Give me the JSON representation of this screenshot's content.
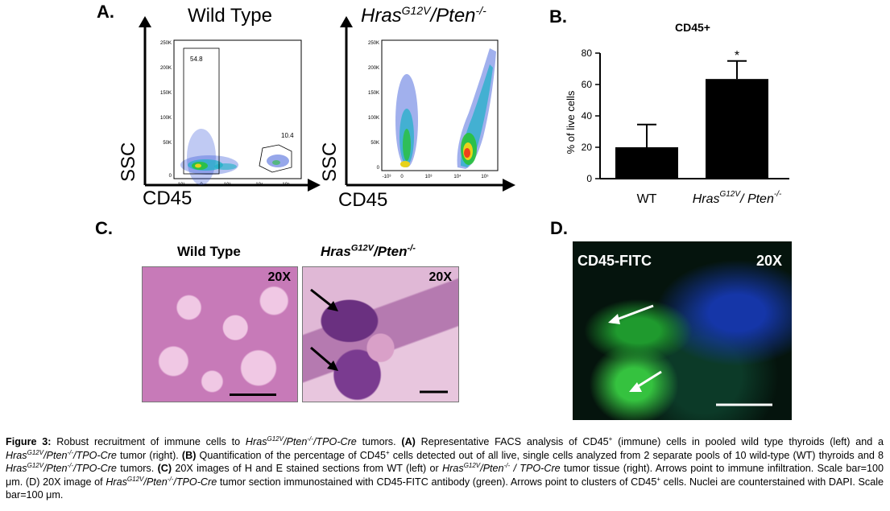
{
  "panels": {
    "a": {
      "label": "A.",
      "left": {
        "title": "Wild Type",
        "ylabel": "SSC",
        "xlabel": "CD45",
        "y_ticks": [
          "250K",
          "200K",
          "150K",
          "100K",
          "50K",
          "0"
        ],
        "x_ticks": [
          "-10³",
          "0",
          "10³",
          "10⁴",
          "10⁵"
        ],
        "gates": [
          {
            "value": "54.8"
          },
          {
            "value": "10.4"
          }
        ]
      },
      "right": {
        "title_base": "Hras",
        "title_sup": "G12V",
        "title_rest": "/Pten",
        "title_sup2": "-/-",
        "ylabel": "SSC",
        "xlabel": "CD45",
        "y_ticks": [
          "250K",
          "200K",
          "150K",
          "100K",
          "50K",
          "0"
        ],
        "x_ticks": [
          "-10³",
          "0",
          "10³",
          "10⁴",
          "10⁵"
        ]
      }
    },
    "b": {
      "label": "B.",
      "chart_data": {
        "type": "bar",
        "title": "CD45+",
        "ylabel": "% of live cells",
        "ylim": [
          0,
          80
        ],
        "yticks": [
          "0",
          "20",
          "40",
          "60",
          "80"
        ],
        "categories": [
          "WT",
          "HrasG12V/ Pten-/-"
        ],
        "values": [
          20,
          63.5
        ],
        "errors": [
          14.5,
          11.5
        ],
        "annotation": "*"
      }
    },
    "c": {
      "label": "C.",
      "left_title": "Wild Type",
      "right_title_base": "Hras",
      "right_title_sup": "G12V",
      "right_title_rest": "/Pten",
      "right_title_sup2": "-/-",
      "mag_left": "20X",
      "mag_right": "20X"
    },
    "d": {
      "label": "D.",
      "stain": "CD45-FITC",
      "mag": "20X"
    }
  },
  "caption": {
    "fig": "Figure 3:",
    "l1a": " Robust recruitment of immune cells to ",
    "l1b": " tumors. ",
    "A": "(A)",
    "l1c": " Representative FACS analysis of CD45",
    "l1d": " (immune) cells in pooled wild type thyroids (left) and a ",
    "l2a": " tumor (right). ",
    "B": "(B)",
    "l2b": " Quantification of the percentage of CD45",
    "l2c": " cells detected out of all live, single cells analyzed from 2 separate pools of 10 wild-type (WT) thyroids and 8 ",
    "l3a": " tumors. ",
    "C": "(C)",
    "l3b": " 20X images of H and E stained sections from WT (left) or ",
    "l3c": " tumor tissue (right). Arrows point to immune infiltration. Scale bar=100 μm. (D) 20X image of ",
    "l4a": " tumor section immunostained with CD45-FITC antibody (green). Arrows point to clusters of CD45",
    "l4b": " cells. Nuclei are counterstained with DAPI. Scale bar=100 μm.",
    "gene": "Hras",
    "g12v": "G12V",
    "pten": "/Pten",
    "ko": "-/-",
    "tpo": "/TPO-Cre",
    "tpo2": " / TPO-Cre",
    "plus": "+"
  }
}
